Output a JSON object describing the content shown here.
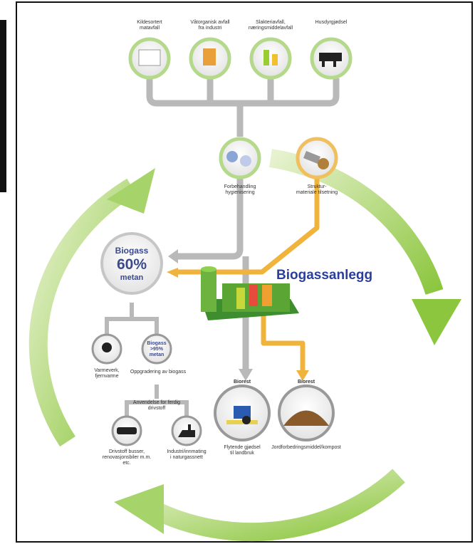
{
  "inputs": [
    {
      "label": [
        "Kildesortert",
        "matavfall"
      ]
    },
    {
      "label": [
        "Våtorganisk avfall",
        "fra industri"
      ]
    },
    {
      "label": [
        "Slakteriavfall,",
        "næringsmiddelavfall"
      ]
    },
    {
      "label": [
        "Husdyrgjødsel"
      ]
    }
  ],
  "processing": [
    {
      "label": [
        "Forbehandling",
        "hygienisering"
      ]
    },
    {
      "label": [
        "Struktur-",
        "materiale tilsetning"
      ]
    }
  ],
  "plant": {
    "label": "Biogassanlegg"
  },
  "biogas": {
    "lines": [
      "Biogass",
      "60%",
      "metan"
    ]
  },
  "uses": [
    {
      "label": [
        "Varmeverk,",
        "fjernvarme"
      ]
    },
    {
      "label": [
        "Oppgradering av biogass"
      ]
    }
  ],
  "upgraded": {
    "lines": [
      "Biogass",
      ">95%",
      "metan"
    ]
  },
  "applications": {
    "title": [
      "Anvendelse for ferdig",
      "drivstoff"
    ],
    "items": [
      {
        "label": [
          "Drivstoff busser,",
          "renovasjonsbiler m.m.",
          "etc."
        ]
      },
      {
        "label": [
          "Industri/innmating",
          "i naturgassnett"
        ]
      }
    ]
  },
  "digestate": [
    {
      "title": "Biorest",
      "label": [
        "Flytende gjødsel",
        "til landbruk"
      ]
    },
    {
      "title": "Biorest",
      "label": [
        "Jordforbedringsmiddel/kompost"
      ]
    }
  ]
}
